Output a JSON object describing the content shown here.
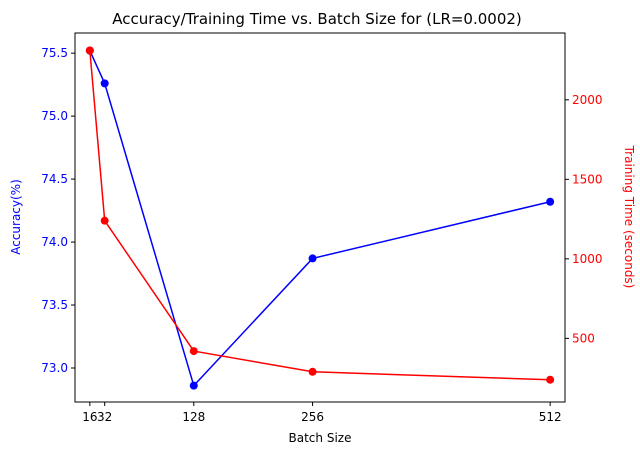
{
  "chart_data": {
    "type": "line",
    "title": "Accuracy/Training Time vs. Batch Size for (LR=0.0002)",
    "xlabel": "Batch Size",
    "ylabel_left": "Accuracy(%)",
    "ylabel_right": "Training Time (seconds)",
    "x": [
      16,
      32,
      128,
      256,
      512
    ],
    "x_ticks": [
      16,
      32,
      128,
      256,
      512
    ],
    "x_tick_labels": [
      "16",
      "32",
      "128",
      "256",
      "512"
    ],
    "xlim": [
      0,
      528
    ],
    "ylim_left": [
      72.73,
      75.66
    ],
    "ylim_right": [
      100,
      2420
    ],
    "y_ticks_left": [
      73.0,
      73.5,
      74.0,
      74.5,
      75.0,
      75.5
    ],
    "y_tick_labels_left": [
      "73.0",
      "73.5",
      "74.0",
      "74.5",
      "75.0",
      "75.5"
    ],
    "y_ticks_right": [
      500,
      1000,
      1500,
      2000
    ],
    "y_tick_labels_right": [
      "500",
      "1000",
      "1500",
      "2000"
    ],
    "grid": false,
    "series": [
      {
        "axis": "left",
        "color": "#0000ff",
        "values": [
          75.52,
          75.26,
          72.86,
          73.87,
          74.32
        ]
      },
      {
        "axis": "right",
        "color": "#ff0000",
        "values": [
          2310,
          1240,
          420,
          290,
          240
        ]
      }
    ]
  }
}
